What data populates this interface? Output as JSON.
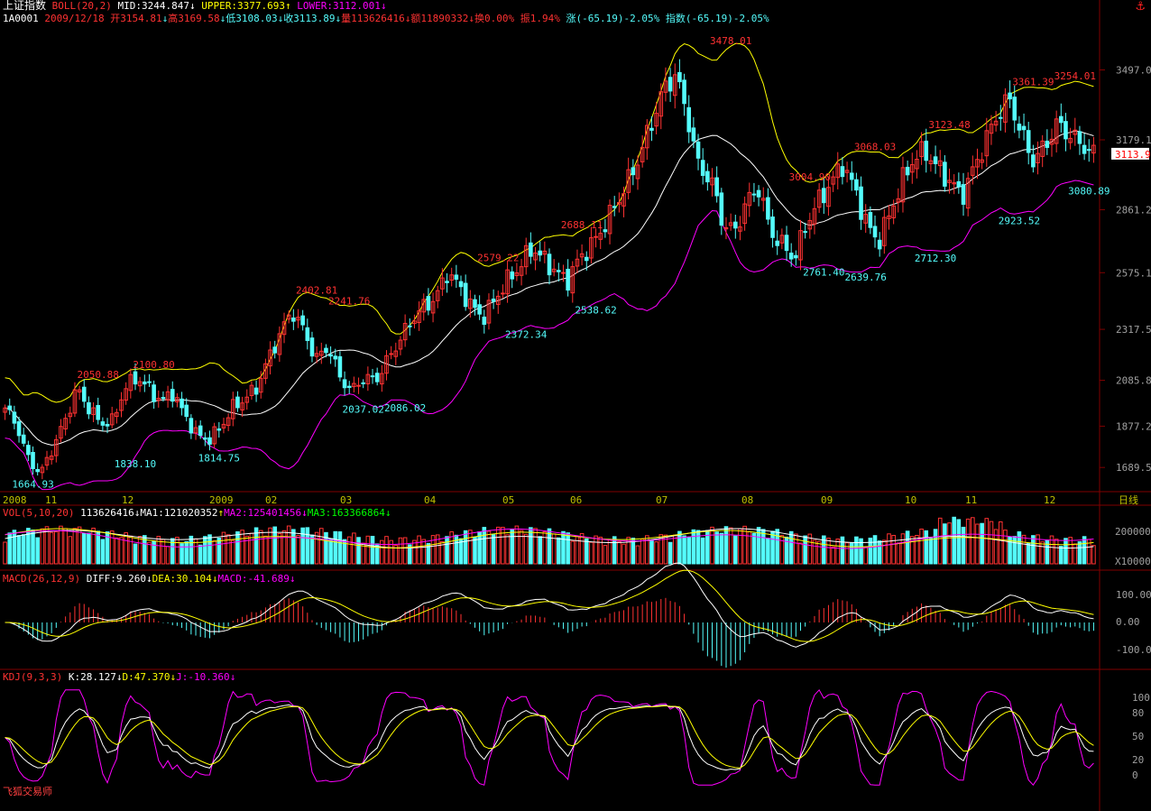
{
  "header": {
    "title": "上证指数",
    "indicator": "BOLL(20,2)",
    "mid_label": "MID:3244.847",
    "upper_label": "UPPER:3377.693",
    "lower_label": "LOWER:3112.001",
    "code": "1A0001",
    "date": "2009/12/18",
    "open": "开3154.81",
    "high": "高3169.58",
    "low": "低3108.03",
    "close": "收3113.89",
    "volume": "量113626416",
    "amount": "额11890332",
    "turnover": "换0.00%",
    "amplitude": "振1.94%",
    "change": "涨(-65.19)-2.05%",
    "index_change": "指数(-65.19)-2.05%"
  },
  "vol_header": {
    "name": "VOL(5,10,20)",
    "value": "113626416",
    "ma1": "MA1:121020352",
    "ma2": "MA2:125401456",
    "ma3": "MA3:163366864"
  },
  "macd_header": {
    "name": "MACD(26,12,9)",
    "diff": "DIFF:9.260",
    "dea": "DEA:30.104",
    "macd": "MACD:-41.689"
  },
  "kdj_header": {
    "name": "KDJ(9,3,3)",
    "k": "K:28.127",
    "d": "D:47.370",
    "j": "J:-10.360"
  },
  "watermark": "飞狐交易师",
  "anchor_icon": "anchor-icon",
  "colors": {
    "up": "#ff3232",
    "down": "#54fcfc",
    "mid": "#ffffff",
    "upper": "#ffff00",
    "lower": "#ff00ff",
    "text_red": "#ff3232",
    "text_cyan": "#54fcfc",
    "axis": "#c0c000",
    "grid": "#800000"
  },
  "chart_data": [
    {
      "type": "candlestick",
      "title": "上证指数 BOLL(20,2)",
      "ylim": [
        1600,
        3700
      ],
      "y_ticks": [
        3497.0,
        3179.1,
        2861.2,
        2575.1,
        2317.5,
        2085.8,
        1877.2,
        1689.5
      ],
      "x_labels": [
        "2008",
        "11",
        "12",
        "2009",
        "02",
        "03",
        "04",
        "05",
        "06",
        "07",
        "08",
        "09",
        "10",
        "11",
        "12",
        "日线"
      ],
      "last_price": "3113.9",
      "annotations_high": [
        "2050.88",
        "2100.80",
        "2402.81",
        "2241.76",
        "2579.22",
        "2688.11",
        "3478.01",
        "3004.90",
        "3068.03",
        "3123.48",
        "3361.39",
        "3254.01"
      ],
      "annotations_low": [
        "1664.93",
        "1838.10",
        "1814.75",
        "2037.02",
        "2086.02",
        "2372.34",
        "2538.62",
        "2761.40",
        "2639.76",
        "2712.30",
        "2923.52",
        "3080.89"
      ],
      "close_path": [
        1960,
        1880,
        1720,
        1664,
        1780,
        1900,
        2050,
        1960,
        1890,
        1900,
        2050,
        2100,
        2050,
        1990,
        2030,
        1930,
        1840,
        1814,
        1870,
        1960,
        2000,
        2050,
        2180,
        2300,
        2402,
        2310,
        2180,
        2241,
        2100,
        2037,
        2100,
        2086,
        2180,
        2270,
        2360,
        2420,
        2460,
        2579,
        2510,
        2420,
        2372,
        2460,
        2540,
        2600,
        2688,
        2640,
        2580,
        2538,
        2640,
        2700,
        2780,
        2880,
        2980,
        3100,
        3250,
        3400,
        3478,
        3300,
        3050,
        3004,
        2800,
        2761,
        2900,
        2960,
        2760,
        2700,
        2639,
        2800,
        2900,
        2980,
        3068,
        2960,
        2800,
        2712,
        2850,
        2990,
        3100,
        3123,
        3050,
        2990,
        2923,
        3050,
        3180,
        3300,
        3361,
        3200,
        3080,
        3160,
        3254,
        3200,
        3160,
        3113
      ]
    },
    {
      "type": "bar",
      "title": "VOL(5,10,20)",
      "ylabel": "X10000",
      "y_ticks": [
        "200000",
        "100000"
      ]
    },
    {
      "type": "bar",
      "title": "MACD(26,12,9)",
      "y_ticks": [
        "100.00",
        "0.00",
        "-100.00"
      ]
    },
    {
      "type": "line",
      "title": "KDJ(9,3,3)",
      "y_ticks": [
        "100",
        "80",
        "50",
        "20",
        "0"
      ]
    }
  ]
}
